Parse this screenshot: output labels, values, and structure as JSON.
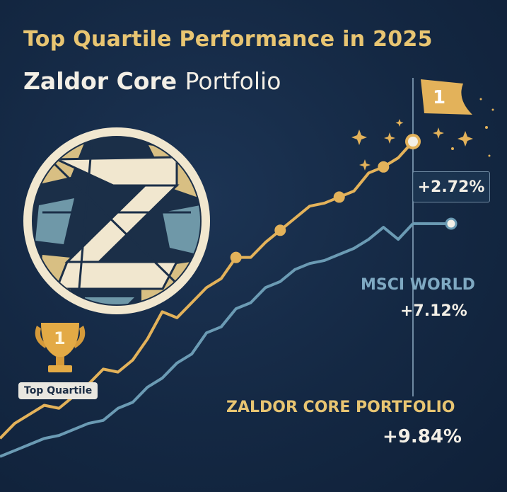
{
  "header": {
    "title_line1": "Top Quartile Performance in 2025",
    "title_bold": "Zaldor Core",
    "title_light": "Portfolio"
  },
  "badge": {
    "rank": "1",
    "label": "Top Quartile"
  },
  "flag": {
    "rank": "1"
  },
  "colors": {
    "background": "#142843",
    "portfolio": "#e3b25a",
    "benchmark": "#6b9bb4",
    "title_accent": "#e8c572"
  },
  "icons": [
    "trophy-icon",
    "flag-icon",
    "sparkle-icon",
    "portfolio-logo-icon"
  ],
  "chart_data": {
    "type": "line",
    "series": [
      {
        "name": "ZALDOR CORE PORTFOLIO",
        "final_value": "+9.84%",
        "values": [
          0.0,
          0.5,
          0.8,
          1.1,
          1.0,
          1.4,
          1.8,
          2.3,
          2.2,
          2.6,
          3.3,
          4.2,
          4.0,
          4.5,
          5.0,
          5.3,
          6.0,
          6.0,
          6.5,
          6.9,
          7.3,
          7.7,
          7.8,
          8.0,
          8.2,
          8.8,
          9.0,
          9.3,
          9.84
        ],
        "color": "#e3b25a"
      },
      {
        "name": "MSCI WORLD",
        "final_value": "+7.12%",
        "values": [
          -0.6,
          -0.4,
          -0.2,
          0.0,
          0.1,
          0.3,
          0.5,
          0.6,
          1.0,
          1.2,
          1.7,
          2.0,
          2.5,
          2.8,
          3.5,
          3.7,
          4.3,
          4.5,
          5.0,
          5.2,
          5.6,
          5.8,
          5.9,
          6.1,
          6.3,
          6.6,
          7.0,
          6.6,
          7.12
        ],
        "color": "#6b9bb4"
      }
    ],
    "annotation": "+2.72%"
  }
}
